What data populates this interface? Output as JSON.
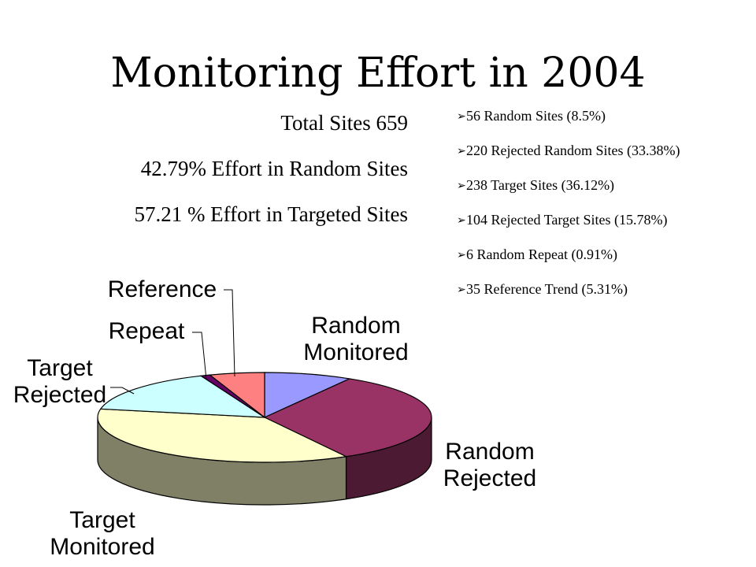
{
  "title": "Monitoring Effort in 2004",
  "stats": [
    "Total Sites 659",
    "42.79% Effort in Random Sites",
    "57.21 % Effort in Targeted Sites"
  ],
  "bullet_icon": "arrow-bullet-icon",
  "bullets": [
    "56 Random Sites (8.5%)",
    "220 Rejected Random Sites (33.38%)",
    "238 Target Sites (36.12%)",
    "104 Rejected Target Sites (15.78%)",
    "6 Random Repeat (0.91%)",
    "35 Reference Trend (5.31%)"
  ],
  "chart_data": {
    "type": "pie",
    "style": "3d",
    "slices": [
      {
        "label": [
          "Random",
          "Monitored"
        ],
        "value": 56,
        "color": "#9999ff",
        "side": "#5c5c99"
      },
      {
        "label": [
          "Random",
          "Rejected"
        ],
        "value": 220,
        "color": "#993366",
        "side": "#4d1a33"
      },
      {
        "label": [
          "Target",
          "Monitored"
        ],
        "value": 238,
        "color": "#ffffcc",
        "side": "#808066"
      },
      {
        "label": [
          "Target",
          "Rejected"
        ],
        "value": 104,
        "color": "#ccffff",
        "side": "#668080"
      },
      {
        "label": [
          "Repeat"
        ],
        "value": 6,
        "color": "#660066",
        "side": "#330033"
      },
      {
        "label": [
          "Reference"
        ],
        "value": 35,
        "color": "#ff8080",
        "side": "#804040"
      }
    ]
  }
}
